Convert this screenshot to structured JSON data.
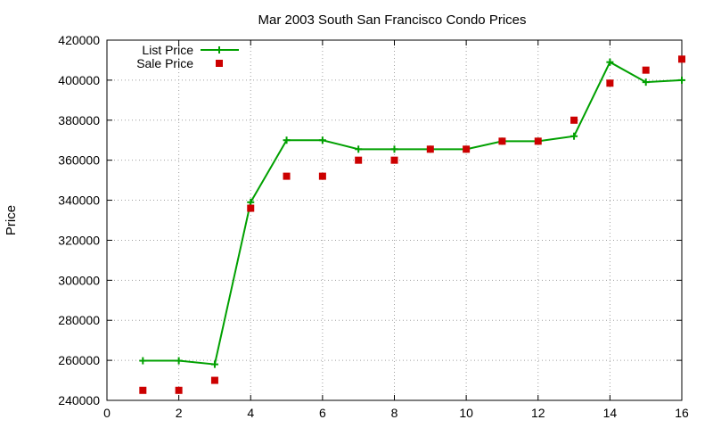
{
  "chart_data": {
    "type": "line",
    "title": "Mar 2003 South San Francisco Condo Prices",
    "xlabel": "",
    "ylabel": "Price",
    "xlim": [
      0,
      16
    ],
    "ylim": [
      240000,
      420000
    ],
    "x_ticks": [
      0,
      2,
      4,
      6,
      8,
      10,
      12,
      14,
      16
    ],
    "y_ticks": [
      240000,
      260000,
      280000,
      300000,
      320000,
      340000,
      360000,
      380000,
      400000,
      420000
    ],
    "grid": true,
    "legend_position": "top-left",
    "series": [
      {
        "name": "List Price",
        "style": "line with plus markers",
        "color": "#00a000",
        "x": [
          1,
          2,
          3,
          4,
          5,
          6,
          7,
          8,
          9,
          10,
          11,
          12,
          13,
          14,
          15,
          16
        ],
        "values": [
          259800,
          259800,
          258000,
          339000,
          370000,
          370000,
          365500,
          365500,
          365500,
          365500,
          369500,
          369500,
          372000,
          409000,
          399000,
          400000
        ]
      },
      {
        "name": "Sale Price",
        "style": "square points",
        "color": "#cc0000",
        "x": [
          1,
          2,
          3,
          4,
          5,
          6,
          7,
          8,
          9,
          10,
          11,
          12,
          13,
          14,
          15,
          16
        ],
        "values": [
          245000,
          245000,
          250000,
          336000,
          352000,
          352000,
          360000,
          360000,
          365500,
          365500,
          369500,
          369500,
          380000,
          398500,
          405000,
          410500
        ]
      }
    ]
  }
}
